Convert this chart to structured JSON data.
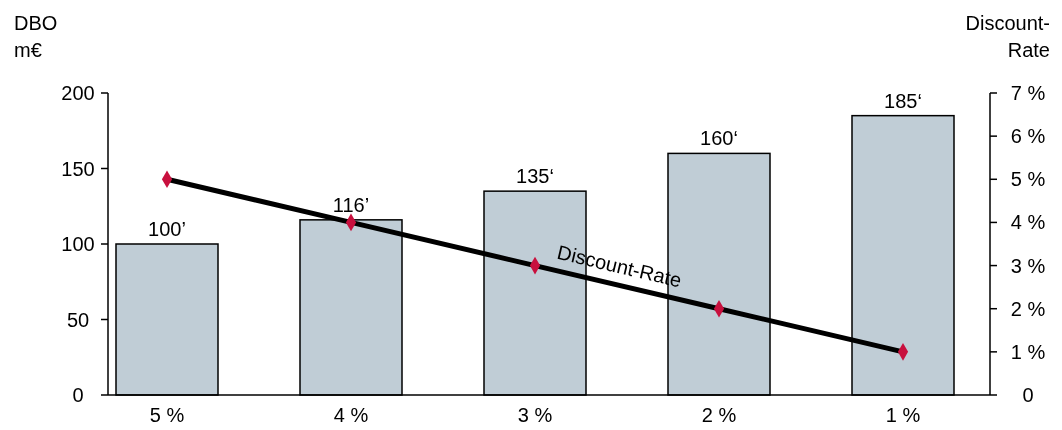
{
  "chart_data": {
    "type": "bar",
    "ylabel": "DBO\nm€",
    "y2label": "Discount-\nRate",
    "categories": [
      "5 %",
      "4 %",
      "3 %",
      "2 %",
      "1 %"
    ],
    "series": [
      {
        "color": "#c0cdd6",
        "values": [
          100,
          116,
          135,
          160,
          185
        ],
        "value_labels": [
          "100’",
          "116’",
          "135‘",
          "160‘",
          "185‘"
        ]
      },
      {
        "type": "line",
        "name": "Discount-Rate",
        "axis": "y2",
        "color": "#000000",
        "colors": [
          "#c8103e",
          "#c8103e",
          "#c8103e",
          "#c8103e",
          "#c8103e"
        ],
        "marker": "diamond",
        "values": [
          5,
          4,
          3,
          2,
          1
        ]
      }
    ],
    "ylim": [
      0,
      200
    ],
    "yticks": [
      0,
      50,
      100,
      150,
      200
    ],
    "y2lim": [
      0,
      7
    ],
    "y2ticks": [
      {
        "value": 0,
        "label": "0"
      },
      {
        "value": 1,
        "label": "1 %"
      },
      {
        "value": 2,
        "label": "2 %"
      },
      {
        "value": 3,
        "label": "3 %"
      },
      {
        "value": 4,
        "label": "4 %"
      },
      {
        "value": 5,
        "label": "5 %"
      },
      {
        "value": 6,
        "label": "6 %"
      },
      {
        "value": 7,
        "label": "7 %"
      }
    ],
    "grid": false
  }
}
